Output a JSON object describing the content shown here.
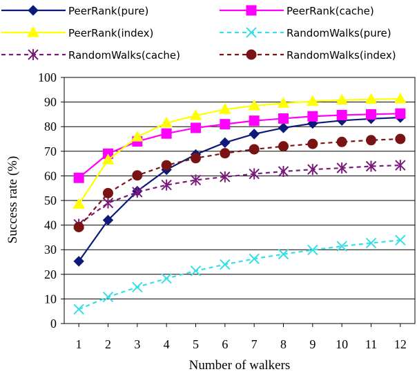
{
  "chart_data": {
    "type": "line",
    "xlabel": "Number of walkers",
    "ylabel": "Success rate (%)",
    "x": [
      1,
      2,
      3,
      4,
      5,
      6,
      7,
      8,
      9,
      10,
      11,
      12
    ],
    "xlim": [
      0.5,
      12.5
    ],
    "ylim": [
      0,
      100
    ],
    "yticks": [
      0,
      10,
      20,
      30,
      40,
      50,
      60,
      70,
      80,
      90,
      100
    ],
    "grid": "horizontal",
    "legend_position": "top",
    "series": [
      {
        "name": "PeerRank(pure)",
        "color": "#0d1a7a",
        "marker": "diamond",
        "dash": "solid",
        "values": [
          25.3,
          42,
          53.8,
          62.5,
          68.7,
          73.5,
          77,
          79.5,
          81.3,
          82.5,
          83.2,
          83.7
        ]
      },
      {
        "name": "PeerRank(cache)",
        "color": "#ff00ff",
        "marker": "square",
        "dash": "solid",
        "values": [
          59.2,
          69,
          74,
          77.2,
          79.5,
          81,
          82.4,
          83.3,
          84.2,
          84.7,
          85,
          85.3
        ]
      },
      {
        "name": "PeerRank(index)",
        "color": "#ffff00",
        "marker": "triangle",
        "dash": "solid",
        "values": [
          48.5,
          66.5,
          75.8,
          81.5,
          84.5,
          87,
          88.5,
          89.5,
          90.3,
          90.8,
          91.1,
          91.3
        ]
      },
      {
        "name": "RandomWalks(pure)",
        "color": "#33e0e6",
        "marker": "x",
        "dash": "dashed",
        "values": [
          5.8,
          10.8,
          14.8,
          18.3,
          21.4,
          24,
          26.3,
          28.2,
          29.9,
          31.4,
          32.7,
          33.9
        ]
      },
      {
        "name": "RandomWalks(cache)",
        "color": "#7a1a7a",
        "marker": "asterisk",
        "dash": "dashed",
        "values": [
          40.3,
          49,
          53.4,
          56.3,
          58.3,
          59.6,
          60.8,
          61.8,
          62.6,
          63.2,
          63.9,
          64.3
        ]
      },
      {
        "name": "RandomWalks(index)",
        "color": "#7a1414",
        "marker": "circle",
        "dash": "dashed",
        "values": [
          39.2,
          53,
          60.2,
          64.3,
          67.2,
          69.2,
          70.8,
          72,
          73,
          73.8,
          74.5,
          75
        ]
      }
    ]
  }
}
